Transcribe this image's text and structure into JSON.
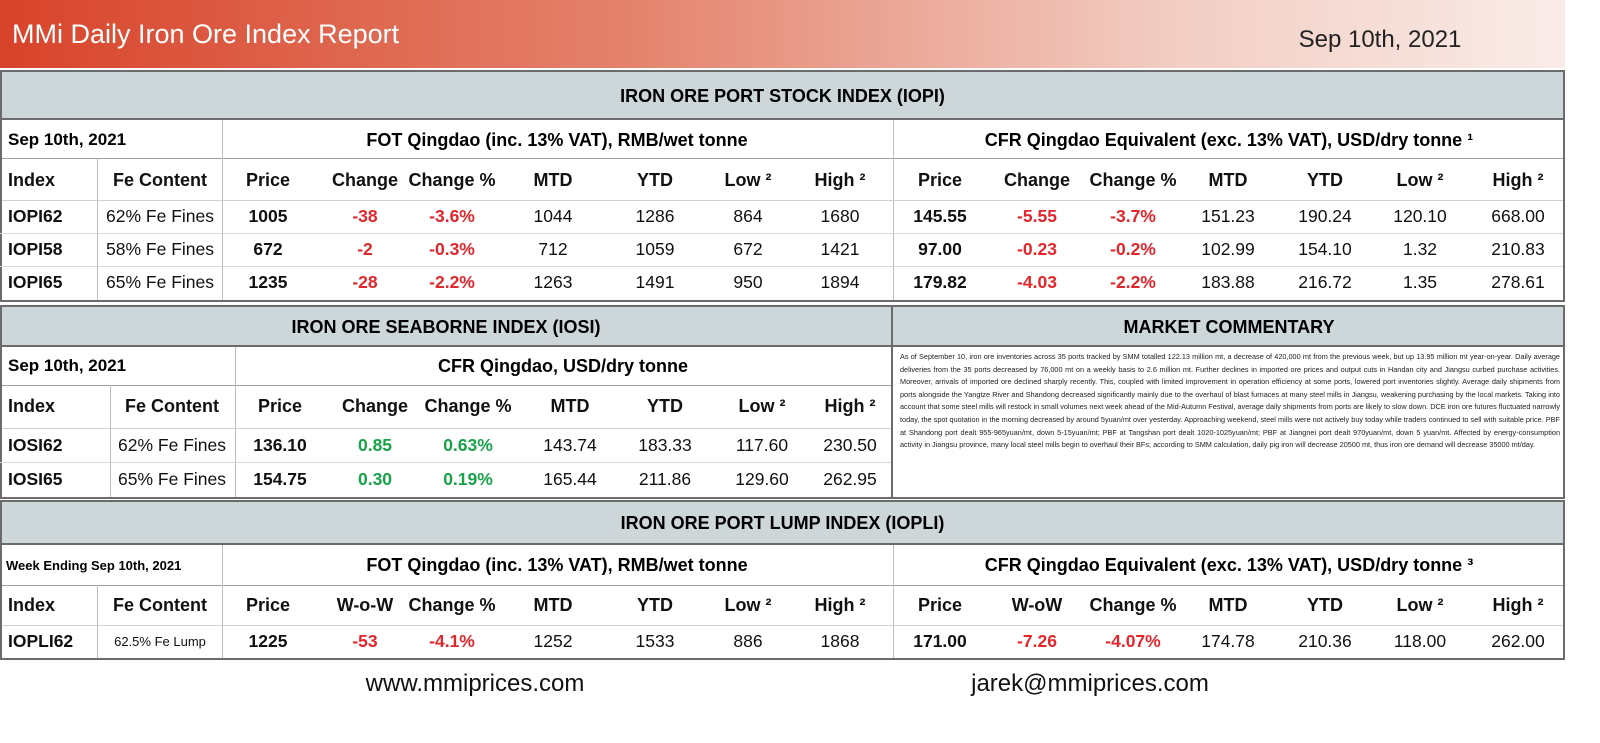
{
  "header": {
    "title": "MMi Daily Iron Ore Index Report",
    "date": "Sep 10th, 2021"
  },
  "iopi": {
    "title": "IRON ORE PORT STOCK INDEX (IOPI)",
    "date": "Sep 10th, 2021",
    "fot_heading": "FOT Qingdao (inc. 13% VAT), RMB/wet tonne",
    "cfr_heading": "CFR Qingdao Equivalent (exc. 13% VAT), USD/dry tonne ¹",
    "columns": [
      "Index",
      "Fe Content",
      "Price",
      "Change",
      "Change %",
      "MTD",
      "YTD",
      "Low ²",
      "High ²",
      "Price",
      "Change",
      "Change %",
      "MTD",
      "YTD",
      "Low ²",
      "High ²"
    ],
    "rows": [
      [
        "IOPI62",
        "62% Fe Fines",
        "1005",
        "-38",
        "-3.6%",
        "1044",
        "1286",
        "864",
        "1680",
        "145.55",
        "-5.55",
        "-3.7%",
        "151.23",
        "190.24",
        "120.10",
        "668.00"
      ],
      [
        "IOPI58",
        "58% Fe Fines",
        "672",
        "-2",
        "-0.3%",
        "712",
        "1059",
        "672",
        "1421",
        "97.00",
        "-0.23",
        "-0.2%",
        "102.99",
        "154.10",
        "1.32",
        "210.83"
      ],
      [
        "IOPI65",
        "65% Fe Fines",
        "1235",
        "-28",
        "-2.2%",
        "1263",
        "1491",
        "950",
        "1894",
        "179.82",
        "-4.03",
        "-2.2%",
        "183.88",
        "216.72",
        "1.35",
        "278.61"
      ]
    ]
  },
  "iosi": {
    "title": "IRON ORE SEABORNE INDEX (IOSI)",
    "date": "Sep 10th, 2021",
    "heading": "CFR Qingdao, USD/dry tonne",
    "columns": [
      "Index",
      "Fe Content",
      "Price",
      "Change",
      "Change %",
      "MTD",
      "YTD",
      "Low ²",
      "High ²"
    ],
    "rows": [
      [
        "IOSI62",
        "62% Fe Fines",
        "136.10",
        "0.85",
        "0.63%",
        "143.74",
        "183.33",
        "117.60",
        "230.50"
      ],
      [
        "IOSI65",
        "65% Fe Fines",
        "154.75",
        "0.30",
        "0.19%",
        "165.44",
        "211.86",
        "129.60",
        "262.95"
      ]
    ]
  },
  "commentary": {
    "title": "MARKET COMMENTARY",
    "text": "As of September 10, iron ore inventories across 35 ports tracked by SMM totalled 122.13 million mt, a decrease of 420,000 mt from the previous week, but up 13.95 million mt year-on-year. Daily average deliveries from the 35 ports decreased by 76,000 mt on a weekly basis to 2.6 million mt. Further declines in imported ore prices and output cuts in Handan city and Jiangsu curbed purchase activities. Moreover, arrivals of imported ore declined sharply recently. This, coupled with limited improvement in operation efficiency at some ports, lowered port inventories slightly. Average daily shipments from ports alongside the Yangtze River and Shandong decreased significantly mainly due to the overhaul of blast furnaces at many steel mills in Jiangsu, weakening purchasing by the local markets. Taking into account that some steel mills will restock in small volumes next week ahead of the Mid-Autumn Festival, average daily shipments from ports are likely to slow down. DCE iron ore futures fluctuated narrowly today, the spot quotation in the morning decreased by around 5yuan/mt over yesterday. Approaching weekend, steel mills were not actively buy today while traders continued to sell with suitable price. PBF at Shandong port dealt 955-965yuan/mt, down 5-15yuan/mt; PBF at Tangshan port dealt 1020-1025yuan/mt; PBF at Jiangnei port dealt 970yuan/mt, down 5 yuan/mt. Affected by energy-consumption activity in Jiangsu province, many local steel mills begin to overhaul their BFs; according to SMM calculation, daily pig iron will decrease 20500 mt, thus iron ore demand will decrease 35000 mt/day."
  },
  "iopli": {
    "title": "IRON ORE PORT LUMP INDEX (IOPLI)",
    "date": "Week Ending Sep 10th, 2021",
    "fot_heading": "FOT Qingdao (inc. 13% VAT), RMB/wet tonne",
    "cfr_heading": "CFR Qingdao Equivalent (exc. 13% VAT), USD/dry tonne ³",
    "columns": [
      "Index",
      "Fe Content",
      "Price",
      "W-o-W",
      "Change %",
      "MTD",
      "YTD",
      "Low ²",
      "High ²",
      "Price",
      "W-oW",
      "Change %",
      "MTD",
      "YTD",
      "Low ²",
      "High ²"
    ],
    "rows": [
      [
        "IOPLI62",
        "62.5% Fe Lump",
        "1225",
        "-53",
        "-4.1%",
        "1252",
        "1533",
        "886",
        "1868",
        "171.00",
        "-7.26",
        "-4.07%",
        "174.78",
        "210.36",
        "118.00",
        "262.00"
      ]
    ]
  },
  "footer": {
    "website": "www.mmiprices.com",
    "email": "jarek@mmiprices.com"
  }
}
